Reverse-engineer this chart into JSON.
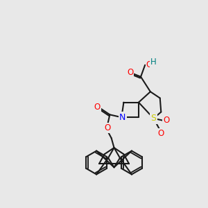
{
  "bg_color": "#e8e8e8",
  "bond_lw": 1.5,
  "bond_color": "#1a1a1a",
  "atom_colors": {
    "O": "#ff0000",
    "N": "#0000ff",
    "S": "#cccc00",
    "H": "#008080",
    "C": "#1a1a1a"
  },
  "font_size": 8.5
}
